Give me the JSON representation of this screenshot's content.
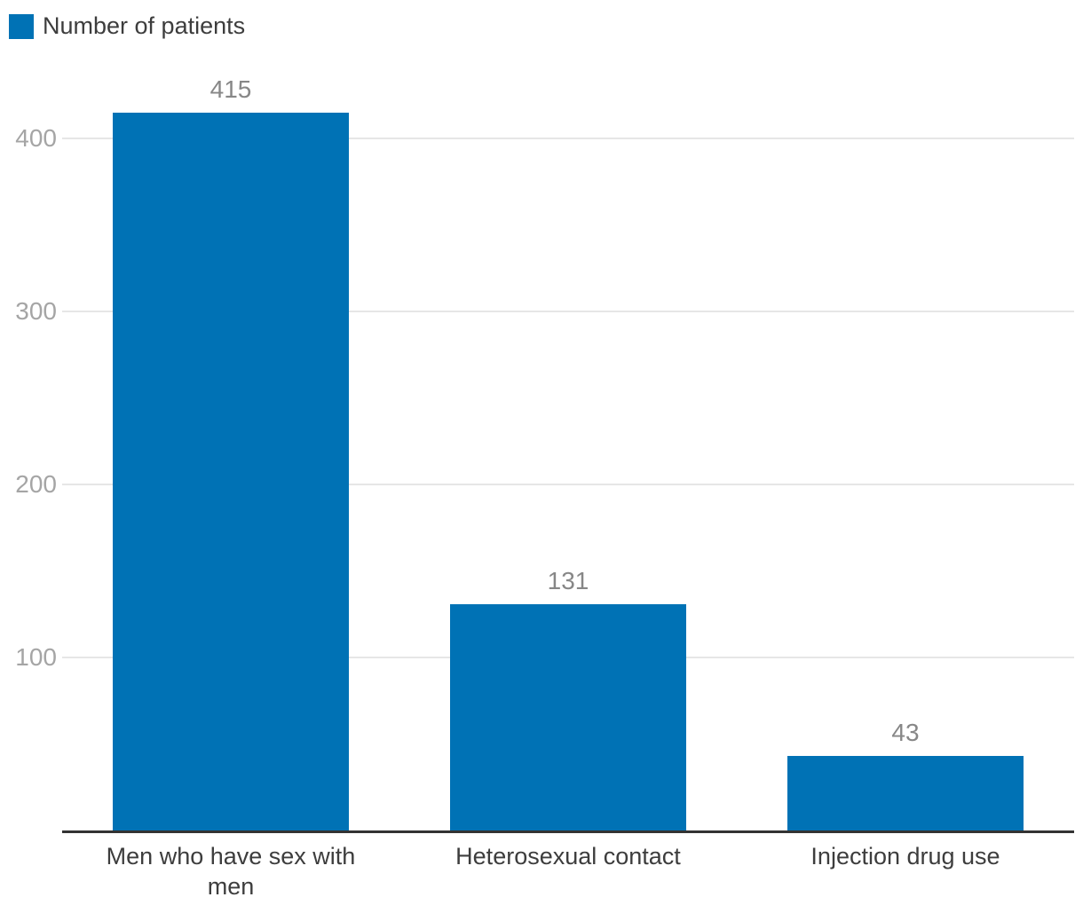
{
  "chart_data": {
    "type": "bar",
    "title": "",
    "xlabel": "",
    "ylabel": "",
    "legend": "Number of patients",
    "legend_position": "top-left",
    "categories": [
      "Men who have sex with men",
      "Heterosexual contact",
      "Injection drug use"
    ],
    "values": [
      415,
      131,
      43
    ],
    "value_labels": [
      "415",
      "131",
      "43"
    ],
    "yticks": [
      "100",
      "200",
      "300",
      "400"
    ],
    "ytick_values": [
      100,
      200,
      300,
      400
    ],
    "ylim": [
      0,
      480
    ],
    "grid": true,
    "value_labels_shown": true
  },
  "colors": {
    "bar": "#0072b5",
    "value_label": "#878787",
    "tick_label": "#a5a5a5",
    "gridline": "#e6e6e6",
    "axis_line": "#333333",
    "category_label": "#3d3d3d",
    "legend_text": "#3d3d3d",
    "background": "#ffffff"
  }
}
